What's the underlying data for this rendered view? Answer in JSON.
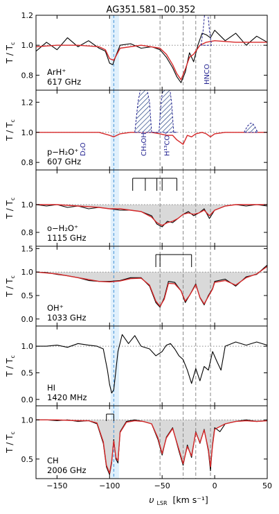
{
  "chart_data": {
    "type": "line",
    "title": "AG351.581−00.352",
    "xlabel": "υ",
    "xlabel_sub": "LSR",
    "xlabel_unit": "[km s⁻¹]",
    "ylabel": "T / T",
    "ylabel_sub": "c",
    "xlim": [
      -170,
      50
    ],
    "xticks": [
      -150,
      -100,
      -50,
      0,
      50
    ],
    "x_tick_labels": [
      "−150",
      "−100",
      "−50",
      "0",
      "50"
    ],
    "shaded_band": [
      -99,
      -91
    ],
    "blue_dashed_line": -96,
    "gray_dashed_lines": [
      -52,
      -30,
      -18,
      -4
    ],
    "panels": [
      {
        "id": "arh",
        "species": "ArH⁺",
        "frequency": "617 GHz",
        "ylim": [
          0.7,
          1.2
        ],
        "yticks": [
          0.8,
          1.0,
          1.2
        ],
        "ytick_labels": [
          "0.8",
          "1.0",
          "1.2"
        ],
        "annotations": [
          {
            "text": "HNCO",
            "x": -8
          }
        ],
        "series": [
          {
            "role": "observed",
            "color": "#000000",
            "x": [
              -170,
              -160,
              -150,
              -140,
              -130,
              -120,
              -110,
              -104,
              -100,
              -97,
              -94,
              -90,
              -80,
              -70,
              -60,
              -52,
              -46,
              -40,
              -36,
              -32,
              -28,
              -24,
              -20,
              -16,
              -12,
              -8,
              -4,
              0,
              10,
              20,
              30,
              40,
              50
            ],
            "y": [
              0.96,
              1.02,
              0.97,
              1.05,
              0.99,
              1.03,
              0.98,
              0.96,
              0.88,
              0.87,
              0.93,
              1.0,
              1.01,
              0.98,
              0.99,
              0.97,
              0.92,
              0.85,
              0.79,
              0.75,
              0.82,
              0.95,
              0.89,
              1.0,
              1.08,
              1.07,
              1.05,
              1.1,
              1.03,
              1.08,
              1.0,
              1.06,
              1.02
            ]
          },
          {
            "role": "model",
            "color": "#d62728",
            "x": [
              -170,
              -150,
              -130,
              -110,
              -104,
              -100,
              -96,
              -90,
              -70,
              -52,
              -46,
              -40,
              -36,
              -32,
              -28,
              -24,
              -20,
              -14,
              -8,
              0,
              20,
              50
            ],
            "y": [
              0.99,
              1.0,
              1.0,
              0.99,
              0.97,
              0.91,
              0.9,
              0.98,
              1.0,
              0.98,
              0.94,
              0.87,
              0.81,
              0.77,
              0.84,
              0.92,
              0.94,
              1.0,
              1.02,
              1.03,
              1.02,
              1.02
            ]
          },
          {
            "role": "contaminant",
            "color": "#1f1f8f",
            "dashed": true,
            "x": [
              -13,
              -11,
              -9,
              -8,
              -7,
              -5,
              -3
            ],
            "y": [
              1.0,
              1.1,
              1.25,
              1.29,
              1.25,
              1.1,
              1.0
            ]
          }
        ]
      },
      {
        "id": "ph2o",
        "species": "p−H₂O⁺",
        "frequency": "607 GHz",
        "ylim": [
          0.75,
          1.28
        ],
        "yticks": [
          0.8,
          1.0,
          1.2
        ],
        "ytick_labels": [
          "0.8",
          "1.0",
          "1.2"
        ],
        "annotations": [
          {
            "text": "D₂O",
            "x": -126
          },
          {
            "text": "CH₃OH",
            "x": -68
          },
          {
            "text": "H¹³CO⁺",
            "x": -46
          }
        ],
        "series": [
          {
            "role": "model",
            "color": "#d62728",
            "x": [
              -170,
              -150,
              -130,
              -110,
              -100,
              -96,
              -90,
              -80,
              -70,
              -60,
              -52,
              -46,
              -40,
              -36,
              -30,
              -26,
              -22,
              -18,
              -12,
              -8,
              -4,
              0,
              10,
              20,
              30,
              40,
              50
            ],
            "y": [
              1.0,
              1.0,
              1.0,
              1.0,
              0.98,
              0.97,
              0.99,
              1.0,
              1.0,
              1.0,
              0.99,
              0.98,
              0.98,
              0.95,
              0.92,
              0.98,
              0.97,
              0.99,
              1.0,
              0.99,
              0.97,
              0.99,
              1.0,
              1.0,
              1.0,
              1.0,
              1.0
            ]
          },
          {
            "role": "contaminant",
            "color": "#1f1f8f",
            "dashed": true,
            "x": [
              -76,
              -73,
              -70,
              -68,
              -65,
              -62,
              -60,
              -57,
              -53,
              -51,
              -49,
              -46,
              -43,
              -41,
              -39,
              -36
            ],
            "y": [
              1.0,
              1.2,
              1.31,
              1.31,
              1.31,
              1.2,
              1.0,
              1.0,
              1.0,
              1.2,
              1.31,
              1.31,
              1.31,
              1.2,
              1.0,
              1.0
            ]
          },
          {
            "role": "contaminant",
            "color": "#1f1f8f",
            "dashed": true,
            "x": [
              28,
              31,
              34,
              36,
              38,
              41
            ],
            "y": [
              1.0,
              1.04,
              1.06,
              1.06,
              1.04,
              1.0
            ]
          }
        ]
      },
      {
        "id": "oh2o",
        "species": "o−H₂O⁺",
        "frequency": "1115 GHz",
        "ylim": [
          0.7,
          1.25
        ],
        "yticks": [
          0.8,
          1.0
        ],
        "ytick_labels": [
          "0.8",
          "1.0"
        ],
        "hfs_pattern": {
          "x0": -78,
          "x1": -36,
          "stems": [
            -78,
            -66,
            -55,
            -50,
            -36
          ]
        },
        "series": [
          {
            "role": "observed",
            "color": "#000000",
            "x": [
              -170,
              -160,
              -150,
              -140,
              -130,
              -120,
              -110,
              -100,
              -90,
              -80,
              -70,
              -60,
              -55,
              -50,
              -45,
              -40,
              -35,
              -30,
              -25,
              -20,
              -15,
              -10,
              -5,
              0,
              10,
              20,
              30,
              40,
              50
            ],
            "y": [
              1.0,
              0.99,
              1.0,
              0.98,
              0.99,
              0.97,
              0.98,
              0.97,
              0.96,
              0.96,
              0.95,
              0.92,
              0.86,
              0.84,
              0.88,
              0.87,
              0.9,
              0.93,
              0.95,
              0.92,
              0.94,
              0.97,
              0.9,
              0.96,
              0.99,
              1.0,
              0.99,
              1.0,
              0.99
            ]
          },
          {
            "role": "model",
            "color": "#d62728",
            "x": [
              -170,
              -150,
              -130,
              -110,
              -100,
              -90,
              -80,
              -70,
              -60,
              -55,
              -50,
              -45,
              -40,
              -35,
              -30,
              -25,
              -20,
              -15,
              -10,
              -5,
              0,
              10,
              20,
              30,
              40,
              50
            ],
            "y": [
              1.0,
              1.0,
              0.99,
              0.98,
              0.97,
              0.97,
              0.96,
              0.95,
              0.91,
              0.87,
              0.85,
              0.87,
              0.88,
              0.9,
              0.93,
              0.94,
              0.93,
              0.94,
              0.96,
              0.92,
              0.96,
              0.99,
              1.0,
              1.0,
              1.0,
              1.0
            ]
          }
        ]
      },
      {
        "id": "ohp",
        "species": "OH⁺",
        "frequency": "1033 GHz",
        "ylim": [
          -0.15,
          1.55
        ],
        "yticks": [
          0.0,
          0.5,
          1.0,
          1.5
        ],
        "ytick_labels": [
          "0.0",
          "0.5",
          "1.0",
          "1.5"
        ],
        "hfs_pattern": {
          "x0": -56,
          "x1": -22,
          "stems": [
            -56,
            -52,
            -22
          ]
        },
        "series": [
          {
            "role": "observed",
            "color": "#000000",
            "x": [
              -170,
              -160,
              -150,
              -140,
              -130,
              -120,
              -110,
              -100,
              -90,
              -80,
              -70,
              -62,
              -56,
              -52,
              -48,
              -44,
              -38,
              -32,
              -28,
              -24,
              -18,
              -14,
              -10,
              -6,
              -2,
              0,
              10,
              20,
              30,
              40,
              50
            ],
            "y": [
              1.0,
              0.99,
              0.95,
              0.92,
              0.88,
              0.82,
              0.8,
              0.8,
              0.82,
              0.88,
              0.88,
              0.7,
              0.35,
              0.25,
              0.45,
              0.8,
              0.78,
              0.6,
              0.35,
              0.5,
              0.75,
              0.45,
              0.3,
              0.5,
              0.65,
              0.8,
              0.85,
              0.7,
              0.9,
              0.95,
              1.15
            ]
          },
          {
            "role": "model",
            "color": "#d62728",
            "x": [
              -170,
              -150,
              -130,
              -110,
              -100,
              -90,
              -80,
              -70,
              -62,
              -56,
              -52,
              -48,
              -44,
              -38,
              -32,
              -28,
              -24,
              -18,
              -14,
              -10,
              -6,
              -2,
              0,
              10,
              20,
              30,
              40,
              50
            ],
            "y": [
              1.0,
              0.96,
              0.88,
              0.8,
              0.79,
              0.81,
              0.86,
              0.87,
              0.72,
              0.38,
              0.27,
              0.42,
              0.76,
              0.75,
              0.6,
              0.38,
              0.5,
              0.73,
              0.46,
              0.32,
              0.48,
              0.64,
              0.78,
              0.82,
              0.72,
              0.88,
              0.96,
              1.12
            ]
          }
        ]
      },
      {
        "id": "hi",
        "species": "HI",
        "frequency": "1420 MHz",
        "ylim": [
          -0.12,
          1.38
        ],
        "yticks": [
          0.0,
          0.5,
          1.0
        ],
        "ytick_labels": [
          "0.0",
          "0.5",
          "1.0"
        ],
        "series": [
          {
            "role": "observed",
            "color": "#000000",
            "x": [
              -170,
              -160,
              -150,
              -140,
              -130,
              -120,
              -112,
              -106,
              -102,
              -100,
              -98,
              -96,
              -92,
              -88,
              -82,
              -76,
              -70,
              -62,
              -56,
              -50,
              -46,
              -42,
              -38,
              -34,
              -30,
              -26,
              -22,
              -18,
              -14,
              -10,
              -6,
              -2,
              2,
              6,
              10,
              20,
              30,
              40,
              50
            ],
            "y": [
              1.0,
              1.0,
              1.02,
              0.98,
              1.05,
              1.02,
              1.0,
              0.95,
              0.55,
              0.28,
              0.12,
              0.18,
              0.9,
              1.22,
              1.05,
              1.2,
              1.0,
              0.95,
              0.82,
              0.9,
              1.02,
              1.05,
              0.95,
              0.82,
              0.75,
              0.55,
              0.3,
              0.58,
              0.35,
              0.62,
              0.55,
              0.9,
              0.72,
              0.55,
              1.0,
              1.08,
              1.02,
              1.08,
              1.02
            ]
          }
        ]
      },
      {
        "id": "ch",
        "species": "CH",
        "frequency": "2006 GHz",
        "ylim": [
          0.25,
          1.18
        ],
        "yticks": [
          0.5,
          1.0
        ],
        "ytick_labels": [
          "0.5",
          "1.0"
        ],
        "hfs_pattern": {
          "x0": -103,
          "x1": -96,
          "stems": [
            -103,
            -96
          ]
        },
        "series": [
          {
            "role": "observed",
            "color": "#000000",
            "x": [
              -170,
              -160,
              -150,
              -140,
              -130,
              -120,
              -112,
              -106,
              -103,
              -100,
              -98,
              -96,
              -94,
              -92,
              -90,
              -84,
              -76,
              -68,
              -60,
              -54,
              -50,
              -46,
              -40,
              -34,
              -30,
              -26,
              -22,
              -18,
              -14,
              -10,
              -6,
              -4,
              -2,
              0,
              5,
              10,
              20,
              30,
              40,
              50
            ],
            "y": [
              1.0,
              1.0,
              0.99,
              1.0,
              0.98,
              0.99,
              0.95,
              0.7,
              0.4,
              0.3,
              0.45,
              0.75,
              0.5,
              0.45,
              0.85,
              0.98,
              1.0,
              0.98,
              0.95,
              0.75,
              0.55,
              0.78,
              0.9,
              0.6,
              0.42,
              0.68,
              0.52,
              0.85,
              0.7,
              0.88,
              0.6,
              0.35,
              0.7,
              0.9,
              0.85,
              0.95,
              0.98,
              1.0,
              0.98,
              0.99
            ]
          },
          {
            "role": "model",
            "color": "#d62728",
            "x": [
              -170,
              -150,
              -130,
              -120,
              -112,
              -106,
              -103,
              -100,
              -98,
              -96,
              -94,
              -92,
              -90,
              -84,
              -76,
              -68,
              -60,
              -54,
              -50,
              -46,
              -40,
              -34,
              -30,
              -26,
              -22,
              -18,
              -14,
              -10,
              -6,
              -4,
              -2,
              0,
              10,
              20,
              30,
              40,
              50
            ],
            "y": [
              1.0,
              1.0,
              0.99,
              0.99,
              0.96,
              0.72,
              0.42,
              0.32,
              0.47,
              0.73,
              0.52,
              0.48,
              0.84,
              0.97,
              0.99,
              0.98,
              0.95,
              0.77,
              0.57,
              0.77,
              0.89,
              0.62,
              0.44,
              0.66,
              0.54,
              0.84,
              0.71,
              0.87,
              0.62,
              0.4,
              0.68,
              0.88,
              0.95,
              0.98,
              0.99,
              0.98,
              0.99
            ]
          }
        ]
      }
    ]
  }
}
